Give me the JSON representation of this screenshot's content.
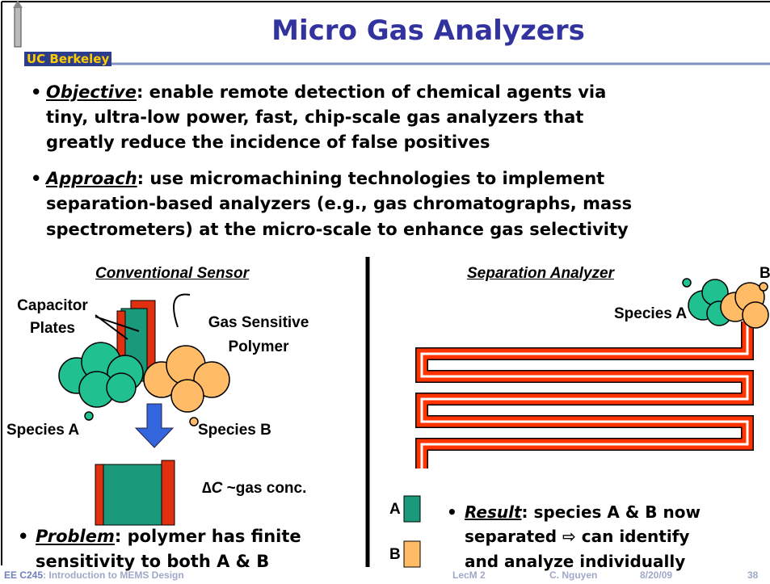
{
  "header": {
    "title": "Micro Gas Analyzers",
    "logo": "UC Berkeley"
  },
  "bullets": [
    {
      "label": "Objective",
      "lines": [
        ": enable remote detection of chemical agents via",
        "tiny, ultra-low power, fast, chip-scale gas analyzers that",
        "greatly reduce the incidence of false positives"
      ]
    },
    {
      "label": "Approach",
      "lines": [
        ": use micromachining technologies to implement",
        "separation-based analyzers (e.g., gas chromatographs, mass",
        "spectrometers) at the micro-scale to enhance gas selectivity"
      ]
    }
  ],
  "left": {
    "heading": "Conventional Sensor",
    "capacitor": [
      "Capacitor",
      "Plates"
    ],
    "polymer": [
      "Gas Sensitive",
      "Polymer"
    ],
    "species_a": "Species A",
    "species_b": "Species B",
    "delta": "∆",
    "delta_var": "C",
    "delta_text": " ~gas conc.",
    "bullet": {
      "label": "Problem",
      "lines": [
        ": polymer has finite",
        "sensitivity to both A & B"
      ]
    }
  },
  "right": {
    "heading": "Separation Analyzer",
    "species_a": "Species A",
    "species_b": "B",
    "legend": [
      "A",
      "B"
    ],
    "bullet": {
      "label": "Result",
      "lines": [
        ": species A & B now",
        "separated ⇨ can identify",
        "and analyze individually"
      ]
    }
  },
  "footer": {
    "course": "EE C245",
    "title": ": Introduction to MEMS Design",
    "lecture": "LecM 2",
    "author": "C. Nguyen",
    "date": "8/20/09",
    "page": "38"
  }
}
